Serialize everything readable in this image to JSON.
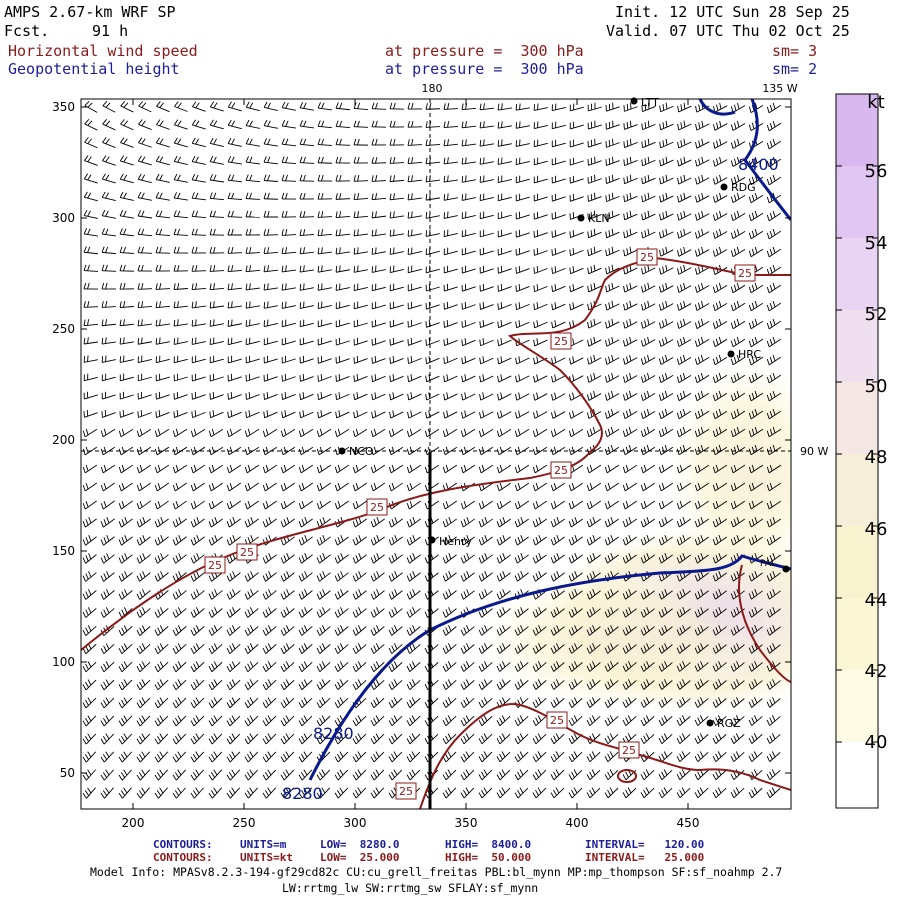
{
  "header": {
    "model": "AMPS 2.67-km WRF SP",
    "fcst_label": "Fcst.",
    "fcst_value": "91 h",
    "init": "Init. 12 UTC Sun 28 Sep 25",
    "valid": "Valid. 07 UTC Thu 02 Oct 25",
    "field1": "Horizontal wind speed",
    "field1_level": "at pressure =  300 hPa",
    "field1_sm": "sm= 3",
    "field2": "Geopotential height",
    "field2_level": "at pressure =  300 hPa",
    "field2_sm": "sm= 2"
  },
  "map": {
    "lon_labels": [
      "180",
      "135 W",
      "90 W"
    ],
    "y_ticks": [
      "350",
      "300",
      "250",
      "200",
      "150",
      "100",
      "50"
    ],
    "x_ticks": [
      "200",
      "250",
      "300",
      "350",
      "400",
      "450"
    ],
    "stations": [
      "LTT",
      "RDG",
      "KLN",
      "HRC",
      "NCO",
      "Henry",
      "RGZ",
      "PAL"
    ],
    "height_contour_labels": [
      "8400",
      "8280",
      "8280"
    ],
    "speed_contour_label": "25"
  },
  "colorbar": {
    "unit": "kt",
    "labels": [
      "56",
      "54",
      "52",
      "50",
      "48",
      "46",
      "44",
      "42",
      "40"
    ],
    "colors": {
      "c56": "#d9b8f0",
      "c54": "#e2c6f2",
      "c52": "#ead4f4",
      "c50": "#f0dfee",
      "c48": "#f4e7e4",
      "c46": "#f6eed8",
      "c44": "#f8f2cf",
      "c42": "#fbf6d4",
      "c40": "#fdfbe4"
    }
  },
  "footer": {
    "c1_label": "CONTOURS:",
    "c1_units": "UNITS=m",
    "c1_low": "LOW=  8280.0",
    "c1_high": "HIGH=  8400.0",
    "c1_interval": "INTERVAL=   120.00",
    "c2_label": "CONTOURS:",
    "c2_units": "UNITS=kt",
    "c2_low": "LOW=  25.000",
    "c2_high": "HIGH=  50.000",
    "c2_interval": "INTERVAL=   25.000",
    "model_info": "Model Info: MPASv8.2.3-194-gf29cd82c CU:cu_grell_freitas PBL:bl_mynn MP:mp_thompson SF:sf_noahmp 2.7",
    "model_info2": "LW:rrtmg_lw SW:rrtmg_sw SFLAY:sf_mynn"
  }
}
